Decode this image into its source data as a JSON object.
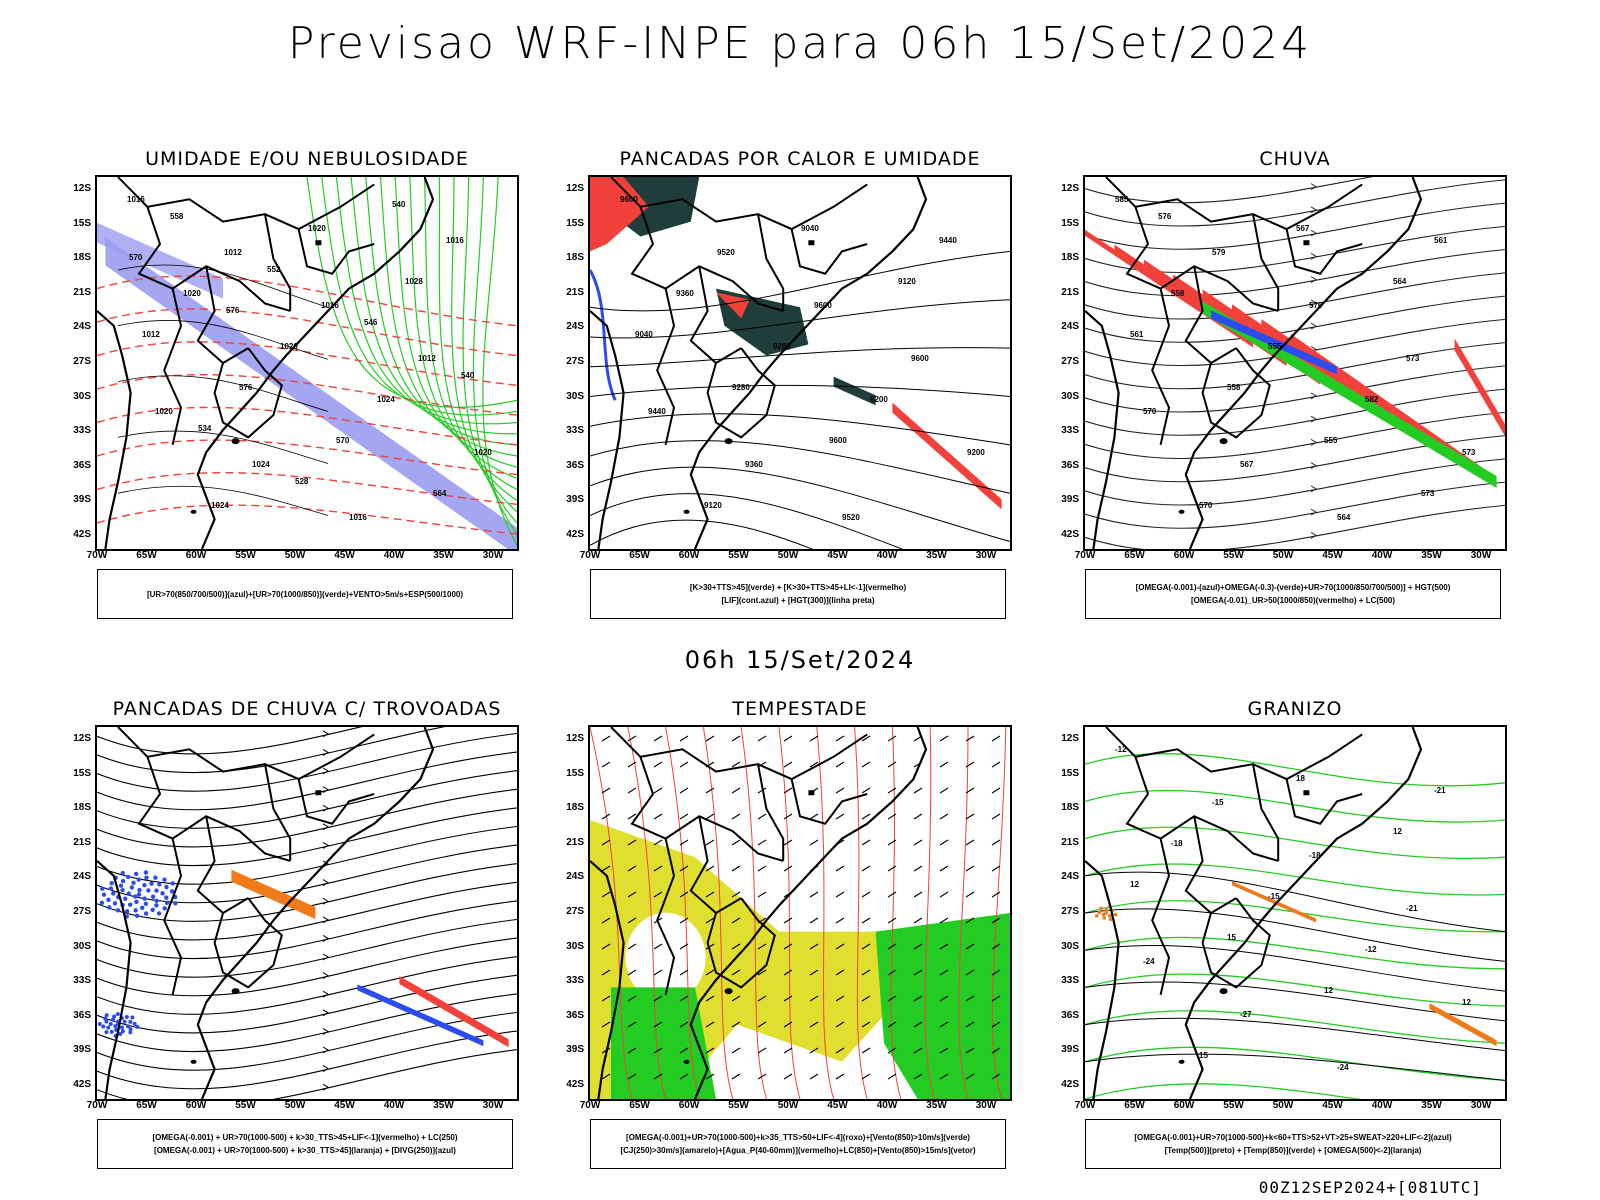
{
  "header": {
    "title": "Previsao WRF-INPE  para 06h 15/Set/2024"
  },
  "middle_title": "06h 15/Set/2024",
  "footer_run": "00Z12SEP2024+[081UTC]",
  "axes": {
    "lat_labels": [
      "12S",
      "15S",
      "18S",
      "21S",
      "24S",
      "27S",
      "30S",
      "33S",
      "36S",
      "39S",
      "42S"
    ],
    "lon_labels": [
      "70W",
      "65W",
      "60W",
      "55W",
      "50W",
      "45W",
      "40W",
      "35W",
      "30W"
    ]
  },
  "panels": [
    {
      "id": "umidade",
      "title": "UMIDADE E/OU NEBULOSIDADE",
      "legend": [
        "[UR>70(850/700/500)](azul)+[UR>70(1000/850)](verde)+VENTO>5m/s+ESP(500/1000)"
      ],
      "contour_labels": [
        "1016",
        "1012",
        "1016",
        "1012",
        "1020",
        "1024",
        "1016",
        "1016",
        "1020",
        "1020",
        "1024",
        "1020",
        "1024",
        "1020",
        "1028",
        "1012",
        "576",
        "570",
        "564",
        "558",
        "552",
        "546",
        "540",
        "534",
        "528",
        "540",
        "570",
        "576"
      ]
    },
    {
      "id": "pancadas-calor",
      "title": "PANCADAS POR CALOR E UMIDADE",
      "legend": [
        "[K>30+TTS>45](verde) + [K>30+TTS>45+LI<-1](vermelho)",
        "[LIF](cont.azul) + [HGT(300)](linha preta)"
      ],
      "contour_labels": [
        "9600",
        "9520",
        "9600",
        "9600",
        "9440",
        "9360",
        "9520",
        "9440",
        "9360",
        "9280",
        "9200",
        "9200",
        "9120",
        "9040",
        "9120",
        "9040",
        "9280",
        "9600"
      ]
    },
    {
      "id": "chuva",
      "title": "CHUVA",
      "legend": [
        "[OMEGA(-0.001)-(azul)+OMEGA(-0.3)-(verde)+UR>70(1000/850/700/500)] + HGT(500)",
        "[OMEGA(-0.01)_UR>50(1000/850)(vermelho) + LC(500)"
      ],
      "contour_labels": [
        "585",
        "579",
        "576",
        "573",
        "570",
        "567",
        "564",
        "561",
        "558",
        "555",
        "582",
        "573",
        "570",
        "567",
        "564",
        "561",
        "558",
        "555",
        "573",
        "576"
      ]
    },
    {
      "id": "pancadas-trovoadas",
      "title": "PANCADAS DE CHUVA C/ TROVOADAS",
      "legend": [
        "[OMEGA(-0.001) + UR>70(1000-500) + k>30_TTS>45+LIF<-1](vermelho) + LC(250)",
        "[OMEGA(-0.001) + UR>70(1000-500) + k>30_TTS>45](laranja) + [DIVG(250)](azul)"
      ],
      "contour_labels": []
    },
    {
      "id": "tempestade",
      "title": "TEMPESTADE",
      "legend": [
        "[OMEGA(-0.001)+UR>70(1000-500)+k>35_TTS>50+LIF<-4](roxo)+[Vento(850)>10m/s](verde)",
        "[CJ(250)>30m/s](amarelo)+[Agua_P(40-60mm)](vermelho)+LC(850)+[Vento(850)>15m/s](vetor)"
      ],
      "contour_labels": []
    },
    {
      "id": "granizo",
      "title": "GRANIZO",
      "legend": [
        "[OMEGA(-0.001)+UR>70(1000-500)+k<60+TTS>52+VT>25+SWEAT>220+LIF<-2](azul)",
        "[Temp(500)](preto) + [Temp(850)](verde) + [OMEGA(500)<-2](laranja)"
      ],
      "contour_labels": [
        "-12",
        "-15",
        "-18",
        "-21",
        "-24",
        "-27",
        "-24",
        "-21",
        "-18",
        "-15",
        "-12",
        "12",
        "15",
        "18",
        "12",
        "12",
        "15",
        "12"
      ]
    }
  ],
  "colors": {
    "blue_shade": "#9a9cf0",
    "green": "#22cc22",
    "red": "#f2413b",
    "dark_teal": "#1f3d3b",
    "yellow": "#e0de2e",
    "orange": "#f07a1a",
    "blue_line": "#2a4cf0",
    "coast": "#000000"
  }
}
